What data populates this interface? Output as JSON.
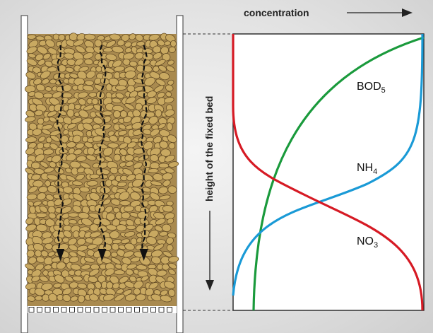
{
  "axis_labels": {
    "concentration": "concentration",
    "height": "height of the fixed bed"
  },
  "curve_labels": {
    "bod": {
      "main": "BOD",
      "sub": "5"
    },
    "nh": {
      "main": "NH",
      "sub": "4"
    },
    "no": {
      "main": "NO",
      "sub": "3"
    }
  },
  "colors": {
    "bod5": "#1a9a3c",
    "nh4": "#1a9ad6",
    "no3": "#d61a24",
    "gravel_fill": "#c9a961",
    "gravel_stroke": "#5a4320",
    "flow_arrow": "#111111",
    "column_wall": "#ffffff"
  },
  "icons": {
    "concentration_arrow": "arrow-right-icon",
    "height_arrow": "arrow-down-icon",
    "flow_arrows": "arrow-down-icon"
  },
  "flow_arrow_count": 3
}
